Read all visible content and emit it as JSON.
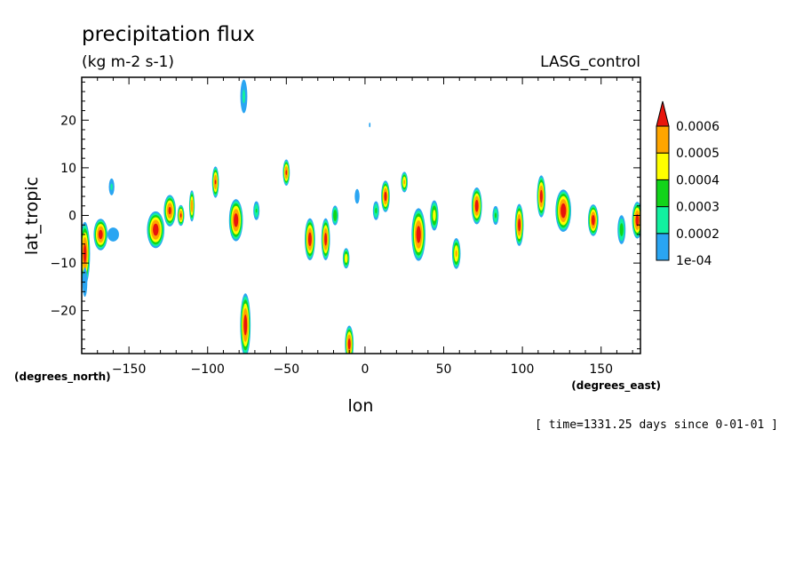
{
  "chart_data": {
    "type": "heatmap",
    "title": "precipitation flux",
    "units": "(kg m-2 s-1)",
    "dataset": "LASG_control",
    "xlabel": "lon",
    "ylabel": "lat_tropic",
    "x_units": "(degrees_east)",
    "y_units": "(degrees_north)",
    "xlim": [
      -180,
      175
    ],
    "ylim": [
      -29,
      29
    ],
    "x_ticks": [
      -150,
      -100,
      -50,
      0,
      50,
      100,
      150
    ],
    "x_tick_labels": [
      "−150",
      "−100",
      "−50",
      "0",
      "50",
      "100",
      "150"
    ],
    "y_ticks": [
      20,
      10,
      0,
      -10,
      -20
    ],
    "y_tick_labels": [
      "20",
      "10",
      "0",
      "−10",
      "−20"
    ],
    "time_label": "[ time=1331.25 days since 0-01-01 ]",
    "colorbar": {
      "levels": [
        0.0001,
        0.0002,
        0.0003,
        0.0004,
        0.0005,
        0.0006
      ],
      "labels": [
        "1e-04",
        "0.0002",
        "0.0003",
        "0.0004",
        "0.0005",
        "0.0006"
      ],
      "colors": [
        "#2aa5f2",
        "#12f0a0",
        "#12d41a",
        "#ffff00",
        "#ffa500",
        "#e8140c"
      ]
    },
    "features": [
      {
        "lon": -178,
        "lat": -8,
        "peak": 0.00065,
        "rx": 3,
        "ry": 6
      },
      {
        "lon": -168,
        "lat": -4,
        "peak": 0.00065,
        "rx": 4,
        "ry": 3
      },
      {
        "lon": -160,
        "lat": -4,
        "peak": 0.00016,
        "rx": 5,
        "ry": 2
      },
      {
        "lon": -161,
        "lat": 6,
        "peak": 0.00022,
        "rx": 2,
        "ry": 2
      },
      {
        "lon": -178,
        "lat": -14,
        "peak": 0.00017,
        "rx": 2,
        "ry": 4
      },
      {
        "lon": -133,
        "lat": -3,
        "peak": 0.00066,
        "rx": 5,
        "ry": 3.5
      },
      {
        "lon": -124,
        "lat": 1,
        "peak": 0.00063,
        "rx": 3.5,
        "ry": 3
      },
      {
        "lon": -117,
        "lat": 0,
        "peak": 0.00062,
        "rx": 2,
        "ry": 2
      },
      {
        "lon": -110,
        "lat": 2,
        "peak": 0.00058,
        "rx": 1.6,
        "ry": 3
      },
      {
        "lon": -95,
        "lat": 7,
        "peak": 0.00061,
        "rx": 2,
        "ry": 3
      },
      {
        "lon": -82,
        "lat": -1,
        "peak": 0.00066,
        "rx": 4,
        "ry": 4
      },
      {
        "lon": -69,
        "lat": 1,
        "peak": 0.00031,
        "rx": 2,
        "ry": 2
      },
      {
        "lon": -77,
        "lat": 25,
        "peak": 0.00022,
        "rx": 2.5,
        "ry": 4
      },
      {
        "lon": -76,
        "lat": -23,
        "peak": 0.00066,
        "rx": 3,
        "ry": 6
      },
      {
        "lon": -50,
        "lat": 9,
        "peak": 0.00062,
        "rx": 2,
        "ry": 2.5
      },
      {
        "lon": -35,
        "lat": -5,
        "peak": 0.00066,
        "rx": 3,
        "ry": 4
      },
      {
        "lon": -25,
        "lat": -5,
        "peak": 0.00065,
        "rx": 2.5,
        "ry": 4
      },
      {
        "lon": -19,
        "lat": 0,
        "peak": 0.0004,
        "rx": 2,
        "ry": 2
      },
      {
        "lon": -12,
        "lat": -9,
        "peak": 0.00048,
        "rx": 2,
        "ry": 2
      },
      {
        "lon": -5,
        "lat": 4,
        "peak": 0.00017,
        "rx": 2,
        "ry": 2
      },
      {
        "lon": 3,
        "lat": 19,
        "peak": 0.00012,
        "rx": 1,
        "ry": 1
      },
      {
        "lon": -10,
        "lat": -27,
        "peak": 0.00065,
        "rx": 2.5,
        "ry": 3.5
      },
      {
        "lon": 7,
        "lat": 1,
        "peak": 0.00032,
        "rx": 2,
        "ry": 2
      },
      {
        "lon": 13,
        "lat": 4,
        "peak": 0.00065,
        "rx": 2.5,
        "ry": 3
      },
      {
        "lon": 25,
        "lat": 7,
        "peak": 0.00052,
        "rx": 2,
        "ry": 2
      },
      {
        "lon": 34,
        "lat": -4,
        "peak": 0.00066,
        "rx": 4,
        "ry": 5
      },
      {
        "lon": 44,
        "lat": 0,
        "peak": 0.00045,
        "rx": 2.5,
        "ry": 3
      },
      {
        "lon": 58,
        "lat": -8,
        "peak": 0.00052,
        "rx": 2.5,
        "ry": 3
      },
      {
        "lon": 71,
        "lat": 2,
        "peak": 0.00066,
        "rx": 3,
        "ry": 3.5
      },
      {
        "lon": 83,
        "lat": 0,
        "peak": 0.00032,
        "rx": 2,
        "ry": 2
      },
      {
        "lon": 98,
        "lat": -2,
        "peak": 0.00065,
        "rx": 2.5,
        "ry": 4
      },
      {
        "lon": 112,
        "lat": 4,
        "peak": 0.00065,
        "rx": 2.5,
        "ry": 4
      },
      {
        "lon": 126,
        "lat": 1,
        "peak": 0.00067,
        "rx": 4.5,
        "ry": 4
      },
      {
        "lon": 145,
        "lat": -1,
        "peak": 0.00066,
        "rx": 3,
        "ry": 3
      },
      {
        "lon": 163,
        "lat": -3,
        "peak": 0.00035,
        "rx": 2.5,
        "ry": 3
      },
      {
        "lon": 173,
        "lat": -1,
        "peak": 0.00066,
        "rx": 3,
        "ry": 3.5
      }
    ]
  }
}
